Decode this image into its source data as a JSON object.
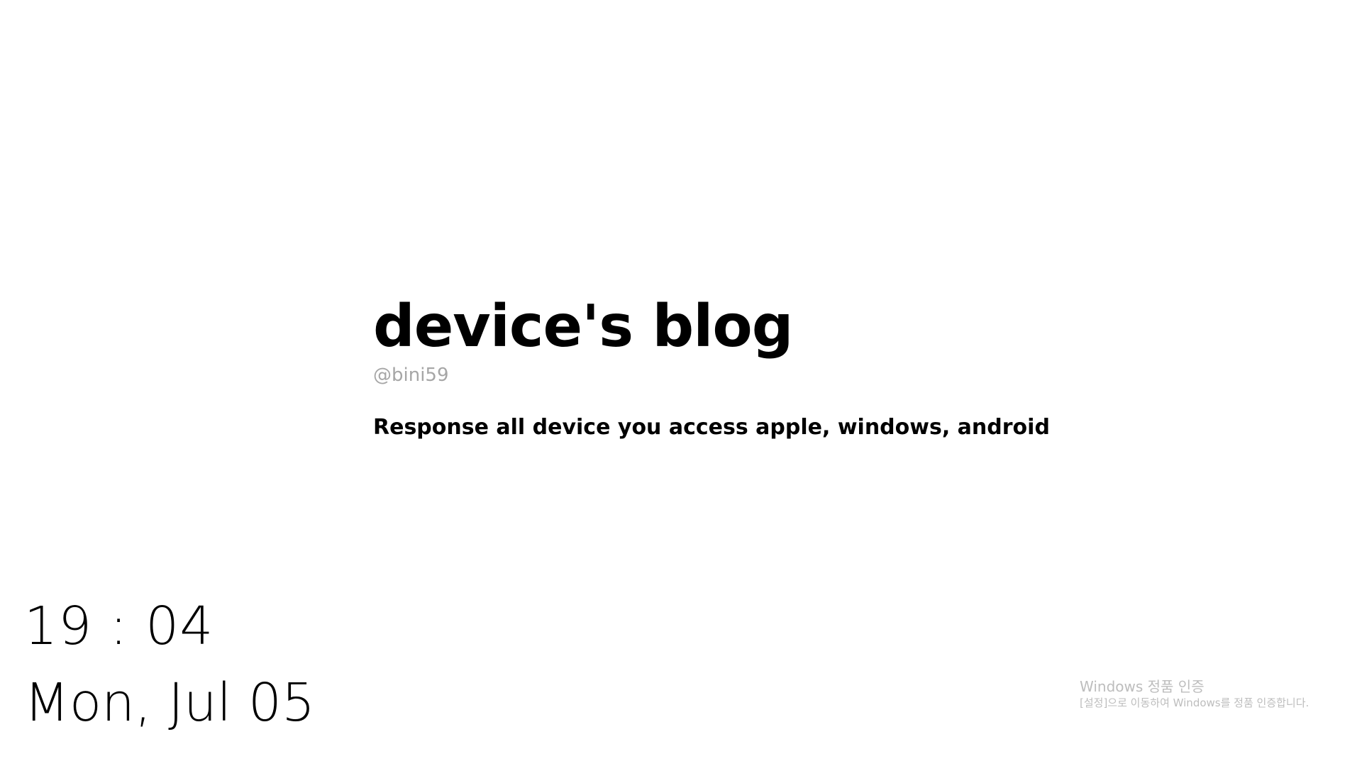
{
  "blog": {
    "title": "device's blog",
    "handle": "@bini59",
    "description": "Response all device you access apple, windows, android"
  },
  "clock": {
    "time": "19 : 04",
    "date": "Mon, Jul 05"
  },
  "activation": {
    "title": "Windows 정품 인증",
    "subtitle": "[설정]으로 이동하여 Windows를 정품 인증합니다."
  },
  "colors": {
    "background": "#ffffff",
    "text": "#000000",
    "muted": "#a6a6a6",
    "watermark": "#bdbdbd"
  }
}
